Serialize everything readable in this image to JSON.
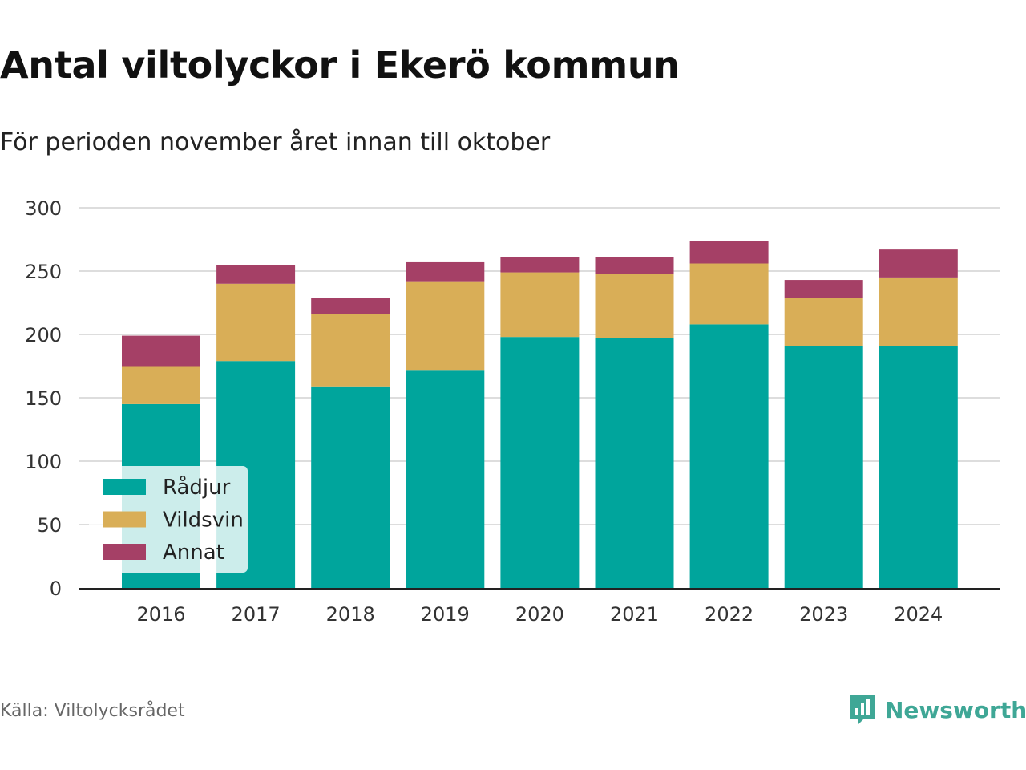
{
  "title": "Antal viltolyckor i Ekerö kommun",
  "subtitle": "För perioden november året innan till oktober",
  "source": "Källa: Viltolycksrådet",
  "brand": "Newsworthy",
  "colors": {
    "radjur": "#00a59c",
    "vildsvin": "#d9ae57",
    "annat": "#a54066",
    "grid": "#dddddd",
    "axis": "#222222"
  },
  "chart_data": {
    "type": "bar",
    "stacked": true,
    "categories": [
      "2016",
      "2017",
      "2018",
      "2019",
      "2020",
      "2021",
      "2022",
      "2023",
      "2024"
    ],
    "series": [
      {
        "name": "Rådjur",
        "color": "#00a59c",
        "values": [
          145,
          179,
          159,
          172,
          198,
          197,
          208,
          191,
          191
        ]
      },
      {
        "name": "Vildsvin",
        "color": "#d9ae57",
        "values": [
          30,
          61,
          57,
          70,
          51,
          51,
          48,
          38,
          54
        ]
      },
      {
        "name": "Annat",
        "color": "#a54066",
        "values": [
          24,
          15,
          13,
          15,
          12,
          13,
          18,
          14,
          22
        ]
      }
    ],
    "yticks": [
      0,
      50,
      100,
      150,
      200,
      250,
      300
    ],
    "ylim": [
      0,
      300
    ],
    "grid": true,
    "legend": "bottom-left"
  }
}
